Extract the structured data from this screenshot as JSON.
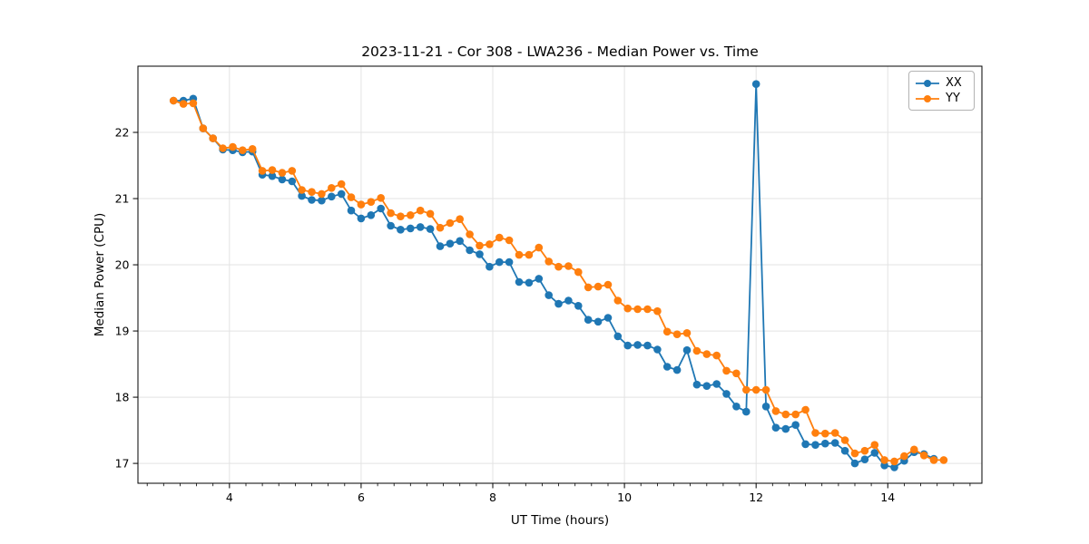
{
  "figure": {
    "title": "2023-11-21 - Cor 308 - LWA236 - Median Power vs. Time"
  },
  "chart_data": {
    "type": "line",
    "title": "2023-11-21 - Cor 308 - LWA236 - Median Power vs. Time",
    "xlabel": "UT Time (hours)",
    "ylabel": "Median Power (CPU)",
    "xlim": [
      2.61,
      15.43
    ],
    "ylim": [
      16.7,
      23.0
    ],
    "x_major_ticks": [
      4,
      6,
      8,
      10,
      12,
      14
    ],
    "x_minor_tick_step": 0.25,
    "y_major_ticks": [
      17,
      18,
      19,
      20,
      21,
      22
    ],
    "grid": true,
    "grid_color": "#e3e3e3",
    "legend_position": "upper right",
    "notes": "Blue XX series has a single large spike to 22.73 at 12.0 hours",
    "series": [
      {
        "name": "XX",
        "color": "#1f77b4",
        "x": [
          3.15,
          3.3,
          3.45,
          3.6,
          3.75,
          3.9,
          4.05,
          4.2,
          4.35,
          4.5,
          4.65,
          4.8,
          4.95,
          5.1,
          5.25,
          5.4,
          5.55,
          5.7,
          5.85,
          6.0,
          6.15,
          6.3,
          6.45,
          6.6,
          6.75,
          6.9,
          7.05,
          7.2,
          7.35,
          7.5,
          7.65,
          7.8,
          7.95,
          8.1,
          8.25,
          8.4,
          8.55,
          8.7,
          8.85,
          9.0,
          9.15,
          9.3,
          9.45,
          9.6,
          9.75,
          9.9,
          10.05,
          10.2,
          10.35,
          10.5,
          10.65,
          10.8,
          10.95,
          11.1,
          11.25,
          11.4,
          11.55,
          11.7,
          11.85,
          12.0,
          12.15,
          12.3,
          12.45,
          12.6,
          12.75,
          12.9,
          13.05,
          13.2,
          13.35,
          13.5,
          13.65,
          13.8,
          13.95,
          14.1,
          14.25,
          14.4,
          14.55,
          14.7
        ],
        "values": [
          22.48,
          22.48,
          22.51,
          22.06,
          21.91,
          21.74,
          21.73,
          21.7,
          21.71,
          21.36,
          21.34,
          21.29,
          21.26,
          21.04,
          20.98,
          20.97,
          21.03,
          21.07,
          20.82,
          20.7,
          20.75,
          20.85,
          20.59,
          20.53,
          20.55,
          20.57,
          20.54,
          20.28,
          20.32,
          20.36,
          20.22,
          20.16,
          19.97,
          20.04,
          20.04,
          19.74,
          19.73,
          19.79,
          19.54,
          19.41,
          19.46,
          19.38,
          19.17,
          19.14,
          19.2,
          18.92,
          18.78,
          18.79,
          18.78,
          18.72,
          18.46,
          18.41,
          18.71,
          18.19,
          18.17,
          18.2,
          18.05,
          17.86,
          17.78,
          22.73,
          17.86,
          17.54,
          17.52,
          17.58,
          17.29,
          17.28,
          17.3,
          17.31,
          17.19,
          17.0,
          17.06,
          17.16,
          16.97,
          16.94,
          17.04,
          17.17,
          17.14,
          17.07
        ]
      },
      {
        "name": "YY",
        "color": "#ff7f0e",
        "x": [
          3.15,
          3.3,
          3.45,
          3.6,
          3.75,
          3.9,
          4.05,
          4.2,
          4.35,
          4.5,
          4.65,
          4.8,
          4.95,
          5.1,
          5.25,
          5.4,
          5.55,
          5.7,
          5.85,
          6.0,
          6.15,
          6.3,
          6.45,
          6.6,
          6.75,
          6.9,
          7.05,
          7.2,
          7.35,
          7.5,
          7.65,
          7.8,
          7.95,
          8.1,
          8.25,
          8.4,
          8.55,
          8.7,
          8.85,
          9.0,
          9.15,
          9.3,
          9.45,
          9.6,
          9.75,
          9.9,
          10.05,
          10.2,
          10.35,
          10.5,
          10.65,
          10.8,
          10.95,
          11.1,
          11.25,
          11.4,
          11.55,
          11.7,
          11.85,
          12.0,
          12.15,
          12.3,
          12.45,
          12.6,
          12.75,
          12.9,
          13.05,
          13.2,
          13.35,
          13.5,
          13.65,
          13.8,
          13.95,
          14.1,
          14.25,
          14.4,
          14.55,
          14.7,
          14.85
        ],
        "values": [
          22.48,
          22.43,
          22.44,
          22.06,
          21.91,
          21.76,
          21.78,
          21.73,
          21.75,
          21.42,
          21.43,
          21.39,
          21.42,
          21.13,
          21.1,
          21.07,
          21.16,
          21.22,
          21.02,
          20.91,
          20.95,
          21.01,
          20.78,
          20.73,
          20.75,
          20.82,
          20.77,
          20.56,
          20.63,
          20.69,
          20.46,
          20.29,
          20.31,
          20.41,
          20.37,
          20.15,
          20.15,
          20.26,
          20.05,
          19.97,
          19.98,
          19.89,
          19.66,
          19.67,
          19.7,
          19.46,
          19.34,
          19.33,
          19.33,
          19.3,
          18.99,
          18.95,
          18.97,
          18.7,
          18.65,
          18.63,
          18.4,
          18.36,
          18.11,
          18.11,
          18.11,
          17.79,
          17.74,
          17.74,
          17.81,
          17.46,
          17.45,
          17.46,
          17.35,
          17.15,
          17.19,
          17.28,
          17.05,
          17.03,
          17.11,
          17.21,
          17.12,
          17.05,
          17.05
        ]
      }
    ]
  },
  "legend": {
    "items": [
      {
        "label": "XX",
        "color": "#1f77b4"
      },
      {
        "label": "YY",
        "color": "#ff7f0e"
      }
    ]
  }
}
